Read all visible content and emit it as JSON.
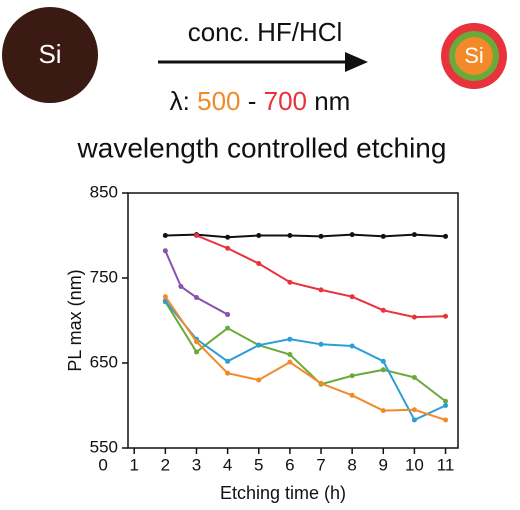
{
  "scheme": {
    "core_label": "Si",
    "reagent": "conc. HF/HCl",
    "lambda_prefix": "λ: ",
    "lambda_low": "500",
    "lambda_dash": " - ",
    "lambda_high": "700",
    "lambda_unit": " nm",
    "caption": "wavelength controlled etching",
    "product_label": "Si"
  },
  "chart_data": {
    "type": "line",
    "xlabel": "Etching time (h)",
    "ylabel": "PL max (nm)",
    "xlim": [
      0.8,
      11.4
    ],
    "xticks": [
      0,
      1,
      2,
      3,
      4,
      5,
      6,
      7,
      8,
      9,
      10,
      11
    ],
    "ylim": [
      550,
      850
    ],
    "yticks": [
      550,
      650,
      750,
      850
    ],
    "series": [
      {
        "color": "#111111",
        "x": [
          2,
          3,
          4,
          5,
          6,
          7,
          8,
          9,
          10,
          11
        ],
        "values": [
          800,
          801,
          798,
          800,
          800,
          799,
          801,
          799,
          801,
          799
        ]
      },
      {
        "color": "#e8323c",
        "x": [
          3,
          4,
          5,
          6,
          7,
          8,
          9,
          10,
          11
        ],
        "values": [
          800,
          785,
          767,
          745,
          736,
          728,
          712,
          704,
          705
        ]
      },
      {
        "color": "#8a4fb0",
        "x": [
          2,
          2.5,
          3,
          4
        ],
        "values": [
          782,
          740,
          727,
          707
        ]
      },
      {
        "color": "#6aaa3a",
        "x": [
          2,
          3,
          4,
          5,
          6,
          7,
          8,
          9,
          10,
          11
        ],
        "values": [
          722,
          663,
          691,
          671,
          660,
          625,
          635,
          642,
          633,
          605
        ]
      },
      {
        "color": "#2a9fd6",
        "x": [
          2,
          3,
          4,
          5,
          6,
          7,
          8,
          9,
          10,
          11
        ],
        "values": [
          723,
          678,
          652,
          671,
          678,
          672,
          670,
          652,
          583,
          600
        ]
      },
      {
        "color": "#f28a2a",
        "x": [
          2,
          3,
          4,
          5,
          6,
          7,
          8,
          9,
          10,
          11
        ],
        "values": [
          728,
          675,
          638,
          630,
          651,
          626,
          612,
          594,
          595,
          583
        ]
      }
    ]
  }
}
